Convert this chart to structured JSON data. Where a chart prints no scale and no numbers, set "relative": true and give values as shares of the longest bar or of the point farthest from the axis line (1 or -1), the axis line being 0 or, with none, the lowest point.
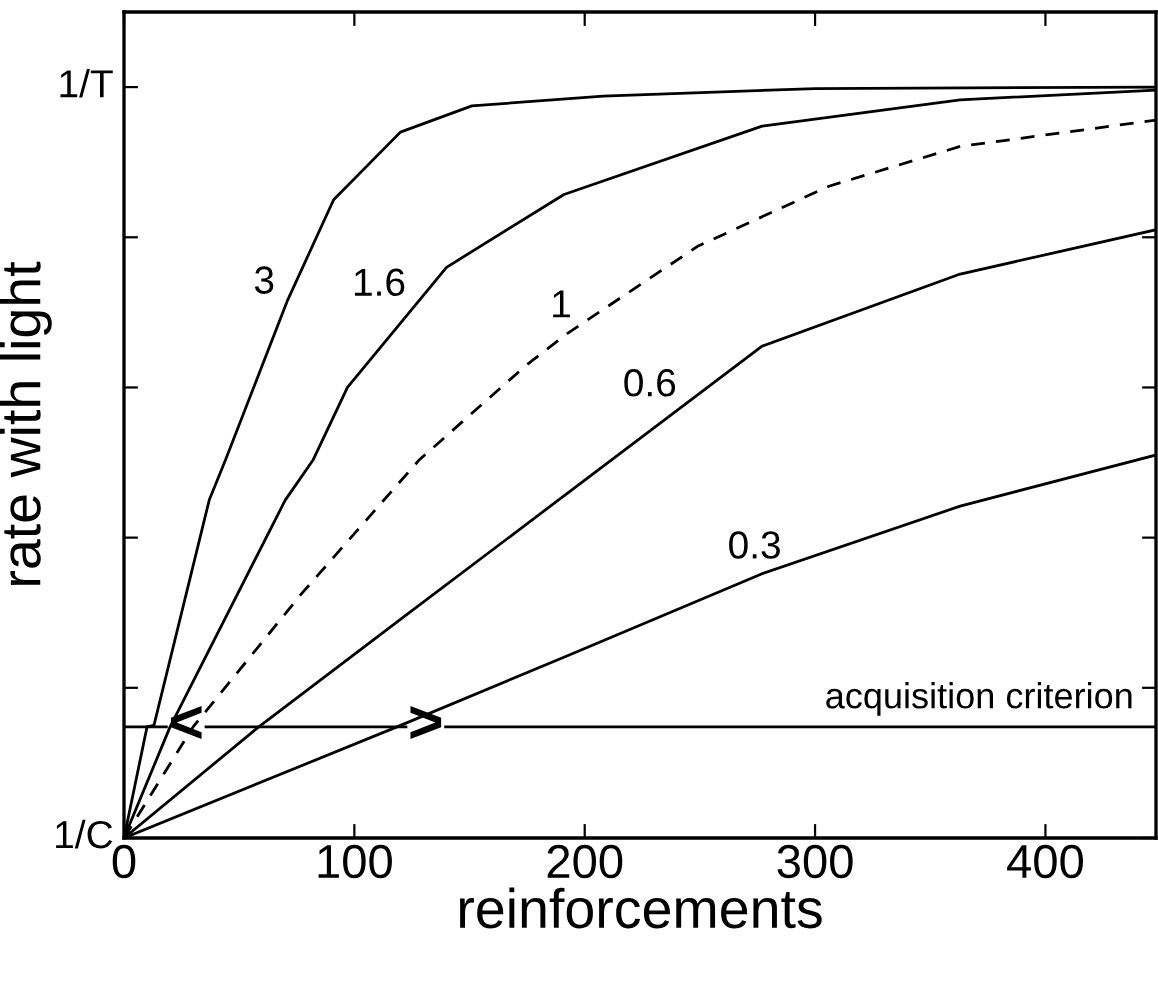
{
  "chart_data": {
    "type": "line",
    "xlabel": "reinforcements",
    "ylabel": "rate with light",
    "xlim": [
      0,
      448
    ],
    "xticks": [
      0,
      100,
      200,
      300,
      400
    ],
    "relative": true,
    "grid": false,
    "legend": false,
    "marker": "none",
    "series": [
      {
        "name": "3",
        "color": "#000000",
        "line_style": "solid",
        "x": [
          0,
          10,
          13,
          37,
          44,
          71,
          91,
          120,
          151,
          208,
          300,
          448
        ],
        "values": [
          0,
          0.148,
          0.15,
          0.45,
          0.503,
          0.716,
          0.85,
          0.94,
          0.975,
          0.988,
          0.998,
          1.0
        ]
      },
      {
        "name": "1.6",
        "color": "#000000",
        "line_style": "solid",
        "x": [
          0,
          20,
          70,
          82,
          97,
          140,
          191,
          277,
          363,
          448
        ],
        "values": [
          0,
          0.148,
          0.45,
          0.503,
          0.6,
          0.76,
          0.857,
          0.948,
          0.983,
          0.996
        ]
      },
      {
        "name": "1",
        "color": "#000000",
        "line_style": "dashed",
        "x": [
          0,
          30,
          77,
          128,
          174,
          192,
          249,
          306,
          363,
          448
        ],
        "values": [
          0,
          0.148,
          0.325,
          0.503,
          0.628,
          0.671,
          0.788,
          0.868,
          0.921,
          0.956
        ]
      },
      {
        "name": "0.6",
        "color": "#000000",
        "line_style": "solid",
        "x": [
          0,
          58.5,
          123,
          192,
          277,
          363,
          448
        ],
        "values": [
          0,
          0.148,
          0.298,
          0.458,
          0.655,
          0.751,
          0.81
        ]
      },
      {
        "name": "0.3",
        "color": "#000000",
        "line_style": "solid",
        "x": [
          0,
          118.5,
          192,
          277,
          363,
          448
        ],
        "values": [
          0,
          0.148,
          0.242,
          0.352,
          0.442,
          0.51
        ]
      }
    ],
    "ref_lines": [
      {
        "axis": "y",
        "value": 0.148,
        "label": "acquisition criterion",
        "color": "#000000"
      }
    ],
    "annotations": [
      "1/C",
      "1/T",
      {
        "text": "<",
        "x": 27,
        "y": 0.148
      },
      {
        "text": ">",
        "x": 131,
        "y": 0.148
      }
    ]
  }
}
